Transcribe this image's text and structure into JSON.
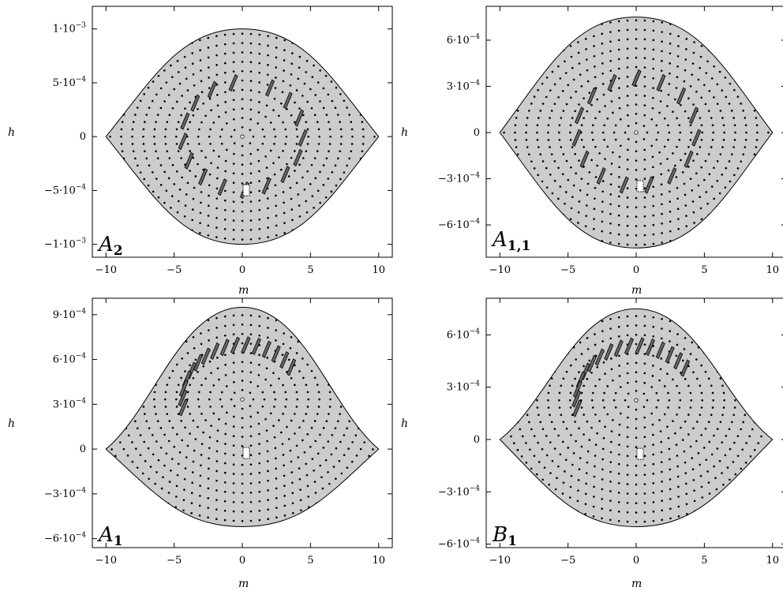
{
  "figure": {
    "xlabel": "m",
    "ylabel": "h",
    "x_ticks": [
      "−10",
      "−5",
      "0",
      "5",
      "10"
    ],
    "x_values": [
      -10,
      -5,
      0,
      5,
      10
    ],
    "panels": [
      {
        "id": "A2",
        "label_main": "A",
        "label_sub": "2",
        "x_range": [
          -11,
          11
        ],
        "y_range": [
          -0.00112,
          0.00121
        ],
        "y_ticks": [
          "1·10",
          "5·10",
          "0",
          "−5·10",
          "−1·10"
        ],
        "y_tick_exp": [
          "−3",
          "−4",
          "",
          "−4",
          "−3"
        ],
        "y_tick_values": [
          0.001,
          0.0005,
          0,
          -0.0005,
          -0.001
        ],
        "region": {
          "top": 0.001,
          "bottom": -0.001,
          "ends": 0,
          "m_max": 10
        }
      },
      {
        "id": "A11",
        "label_main": "A",
        "label_sub": "1,1",
        "x_range": [
          -11,
          11
        ],
        "y_range": [
          -0.00081,
          0.00082
        ],
        "y_ticks": [
          "6·10",
          "3·10",
          "0",
          "−3·10",
          "−6·10"
        ],
        "y_tick_exp": [
          "−4",
          "−4",
          "",
          "−4",
          "−4"
        ],
        "y_tick_values": [
          0.0006,
          0.0003,
          0,
          -0.0003,
          -0.0006
        ],
        "region": {
          "top": 0.00075,
          "bottom": -0.00075,
          "ends": 0,
          "m_max": 10
        }
      },
      {
        "id": "A1",
        "label_main": "A",
        "label_sub": "1",
        "x_range": [
          -11,
          11
        ],
        "y_range": [
          -0.00066,
          0.00101
        ],
        "y_ticks": [
          "9·10",
          "6·10",
          "3·10",
          "0",
          "−3·10",
          "−6·10"
        ],
        "y_tick_exp": [
          "−4",
          "−4",
          "−4",
          "",
          "−4",
          "−4"
        ],
        "y_tick_values": [
          0.0009,
          0.0006,
          0.0003,
          0,
          -0.0003,
          -0.0006
        ],
        "region": {
          "top": 0.00095,
          "bottom": -0.00052,
          "ends": 0,
          "m_max": 10
        }
      },
      {
        "id": "B1",
        "label_main": "B",
        "label_sub": "1",
        "x_range": [
          -11,
          11
        ],
        "y_range": [
          -0.00062,
          0.00081
        ],
        "y_ticks": [
          "6·10",
          "3·10",
          "0",
          "−3·10",
          "−6·10"
        ],
        "y_tick_exp": [
          "−4",
          "−4",
          "",
          "−4",
          "−4"
        ],
        "y_tick_values": [
          0.0006,
          0.0003,
          0,
          -0.0003,
          -0.0006
        ],
        "region": {
          "top": 0.00075,
          "bottom": -0.0005,
          "ends": 0,
          "m_max": 10
        }
      }
    ]
  },
  "colors": {
    "region_fill": "#cccccc",
    "marker_fill": "#666666",
    "outline": "#000000",
    "background": "#ffffff"
  }
}
